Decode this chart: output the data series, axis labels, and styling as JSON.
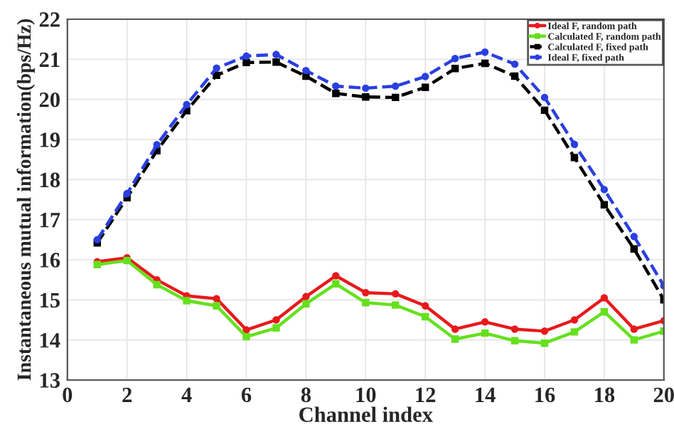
{
  "chart_data": {
    "type": "line",
    "xlabel": "Channel index",
    "ylabel": "Instantaneous mutual information(bps/Hz)",
    "x": [
      1,
      2,
      3,
      4,
      5,
      6,
      7,
      8,
      9,
      10,
      11,
      12,
      13,
      14,
      15,
      16,
      17,
      18,
      19,
      20
    ],
    "xlim": [
      0,
      20
    ],
    "xticks": [
      0,
      2,
      4,
      6,
      8,
      10,
      12,
      14,
      16,
      18,
      20
    ],
    "ylim": [
      13,
      22
    ],
    "yticks": [
      13,
      14,
      15,
      16,
      17,
      18,
      19,
      20,
      21,
      22
    ],
    "grid": true,
    "legend": "top right",
    "series": [
      {
        "name": "Ideal F, random path",
        "color": "#e8191c",
        "marker": "circle",
        "line_style": "solid",
        "values": [
          15.95,
          16.05,
          15.5,
          15.1,
          15.03,
          14.25,
          14.5,
          15.08,
          15.6,
          15.18,
          15.15,
          14.85,
          14.27,
          14.45,
          14.27,
          14.22,
          14.5,
          15.05,
          14.27,
          14.48
        ]
      },
      {
        "name": "Calculated F, random path",
        "color": "#66e01e",
        "marker": "square",
        "line_style": "solid",
        "values": [
          15.88,
          15.98,
          15.38,
          14.98,
          14.85,
          14.08,
          14.3,
          14.9,
          15.4,
          14.93,
          14.87,
          14.58,
          14.02,
          14.17,
          13.98,
          13.92,
          14.2,
          14.7,
          14.0,
          14.22
        ]
      },
      {
        "name": "Calculated F, fixed path",
        "color": "#000000",
        "marker": "square",
        "line_style": "dashed",
        "values": [
          16.42,
          17.55,
          18.72,
          19.72,
          20.6,
          20.92,
          20.93,
          20.58,
          20.15,
          20.06,
          20.05,
          20.3,
          20.77,
          20.9,
          20.58,
          19.73,
          18.55,
          17.37,
          16.27,
          15.0
        ]
      },
      {
        "name": "Ideal F, fixed path",
        "color": "#2a3fe0",
        "marker": "circle",
        "line_style": "dashed",
        "values": [
          16.5,
          17.65,
          18.87,
          19.87,
          20.78,
          21.08,
          21.12,
          20.72,
          20.33,
          20.28,
          20.33,
          20.57,
          21.02,
          21.18,
          20.88,
          20.05,
          18.88,
          17.75,
          16.58,
          15.35
        ]
      }
    ]
  }
}
